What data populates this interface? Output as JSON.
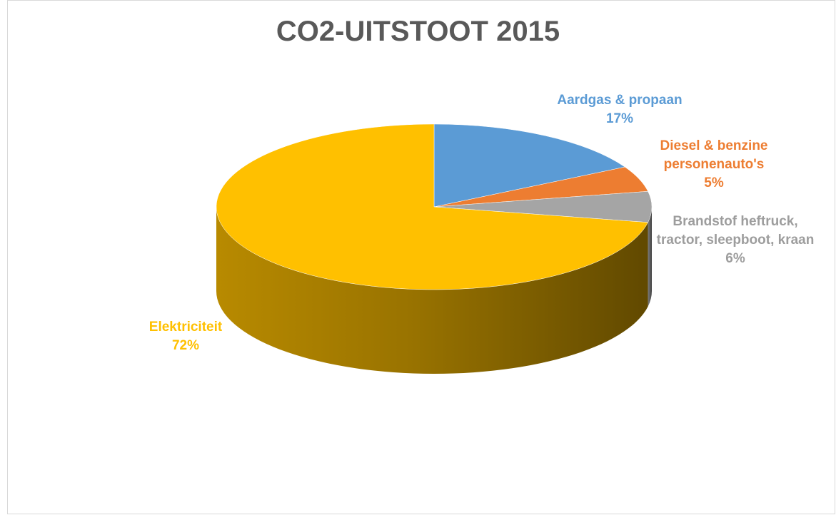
{
  "chart_data": {
    "type": "pie",
    "title": "CO2-UITSTOOT 2015",
    "categories": [
      "Aardgas & propaan",
      "Diesel & benzine personenauto's",
      "Brandstof heftruck, tractor, sleepboot, kraan",
      "Elektriciteit"
    ],
    "values": [
      17,
      5,
      6,
      72
    ],
    "value_labels": [
      "17%",
      "5%",
      "6%",
      "72%"
    ],
    "colors": [
      "#5b9bd5",
      "#ed7d31",
      "#a5a5a5",
      "#ffc000"
    ]
  }
}
